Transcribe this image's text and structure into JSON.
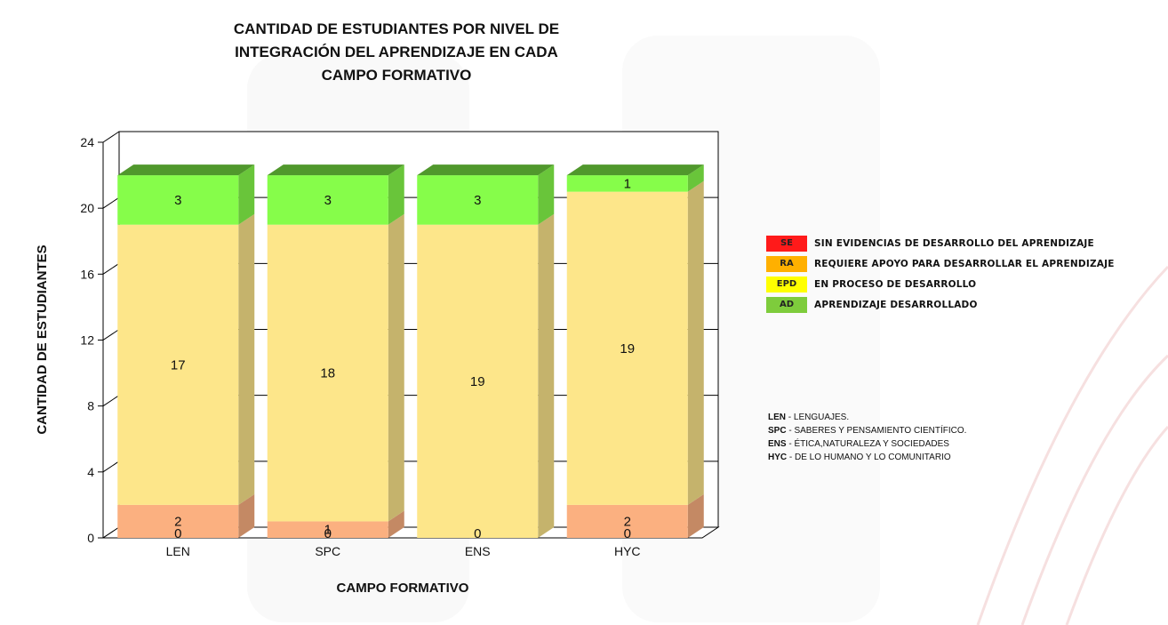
{
  "chart_data": {
    "type": "bar",
    "stacked": true,
    "title_lines": [
      "CANTIDAD DE ESTUDIANTES POR NIVEL DE",
      "INTEGRACIÓN DEL APRENDIZAJE EN CADA",
      "CAMPO FORMATIVO"
    ],
    "xlabel": "CAMPO FORMATIVO",
    "ylabel": "CANTIDAD DE ESTUDIANTES",
    "categories": [
      "LEN",
      "SPC",
      "ENS",
      "HYC"
    ],
    "ylim": [
      0,
      24
    ],
    "yticks": [
      0,
      4,
      8,
      12,
      16,
      20,
      24
    ],
    "series": [
      {
        "name": "SE",
        "color": "#ff1a1a",
        "values": [
          0,
          0,
          0,
          0
        ]
      },
      {
        "name": "RA",
        "color": "#fbb080",
        "values": [
          2,
          1,
          0,
          2
        ]
      },
      {
        "name": "EPD",
        "color": "#fde68a",
        "values": [
          17,
          18,
          19,
          19
        ]
      },
      {
        "name": "AD",
        "color": "#86fd4a",
        "values": [
          3,
          3,
          3,
          1
        ]
      }
    ],
    "legend_placement": "right"
  },
  "legend": {
    "items": [
      {
        "code": "SE",
        "label": "SIN EVIDENCIAS DE DESARROLLO DEL APRENDIZAJE",
        "color": "#ff1a1a"
      },
      {
        "code": "RA",
        "label": "REQUIERE APOYO PARA DESARROLLAR EL APRENDIZAJE",
        "color": "#ffb000"
      },
      {
        "code": "EPD",
        "label": "EN PROCESO DE DESARROLLO",
        "color": "#ffff00"
      },
      {
        "code": "AD",
        "label": "APRENDIZAJE DESARROLLADO",
        "color": "#7ecc3c"
      }
    ]
  },
  "abbreviations": [
    {
      "code": "LEN",
      "text": " - LENGUAJES."
    },
    {
      "code": "SPC",
      "text": " - SABERES Y PENSAMIENTO CIENTÍFICO."
    },
    {
      "code": "ENS",
      "text": " - ÉTICA,NATURALEZA Y SOCIEDADES"
    },
    {
      "code": "HYC",
      "text": " - DE LO HUMANO Y LO COMUNITARIO"
    }
  ]
}
